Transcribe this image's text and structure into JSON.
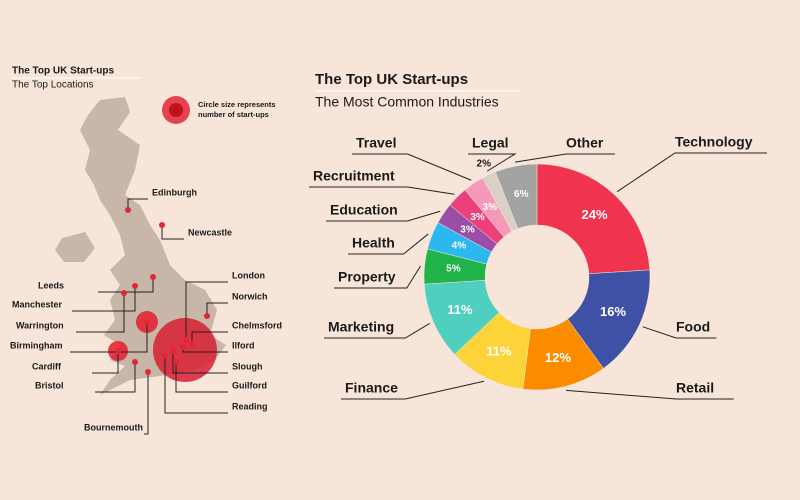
{
  "map": {
    "title": "The Top UK Start-ups",
    "subtitle": "The Top Locations",
    "legend_note": [
      "Circle size represents",
      "number of start-ups"
    ],
    "cities": [
      "Edinburgh",
      "Newcastle",
      "Leeds",
      "Manchester",
      "Warrington",
      "Birmingham",
      "Cardiff",
      "Bristol",
      "Bournemouth",
      "London",
      "Norwich",
      "Chelmsford",
      "Ilford",
      "Slough",
      "Guilford",
      "Reading"
    ]
  },
  "chart_data": {
    "type": "donut",
    "title": "The Top UK Start-ups",
    "subtitle": "The Most Common Industries",
    "categories": [
      "Technology",
      "Food",
      "Retail",
      "Finance",
      "Marketing",
      "Property",
      "Health",
      "Education",
      "Recruitment",
      "Travel",
      "Legal",
      "Other"
    ],
    "values": [
      24,
      16,
      12,
      11,
      11,
      5,
      4,
      3,
      3,
      3,
      2,
      6
    ],
    "value_labels": [
      "24%",
      "16%",
      "12%",
      "11%",
      "11%",
      "5%",
      "4%",
      "3%",
      "3%",
      "3%",
      "2%",
      "6%"
    ],
    "colors": [
      "#f0344f",
      "#3f51a5",
      "#fb8c00",
      "#fdd33a",
      "#4ecfbf",
      "#1fb34a",
      "#2bb8ee",
      "#9a4ea6",
      "#ec407a",
      "#f49ab8",
      "#dccfc6",
      "#a3a3a3"
    ]
  }
}
